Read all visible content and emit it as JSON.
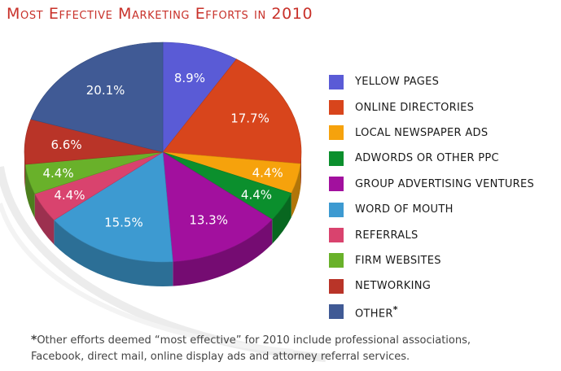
{
  "title": "Most Effective Marketing Efforts in 2010",
  "legend_note_marker": "*",
  "footnote": {
    "marker": "*",
    "line1": "Other efforts deemed “most effective” for 2010 include professional associations,",
    "line2": "Facebook, direct mail, online display ads and attorney referral services."
  },
  "chart_data": {
    "type": "pie",
    "title": "Most Effective Marketing Efforts in 2010",
    "legend_position": "right",
    "slices": [
      {
        "name": "YELLOW PAGES",
        "label": "8.9%",
        "value": 8.9,
        "color": "#5a5bd6"
      },
      {
        "name": "ONLINE DIRECTORIES",
        "label": "17.7%",
        "value": 17.7,
        "color": "#d8451c"
      },
      {
        "name": "LOCAL NEWSPAPER ADS",
        "label": "4.4%",
        "value": 4.4,
        "color": "#f6a20c"
      },
      {
        "name": "ADWORDS OR OTHER PPC",
        "label": "4.4%",
        "value": 4.4,
        "color": "#0b8f2d"
      },
      {
        "name": "GROUP ADVERTISING VENTURES",
        "label": "13.3%",
        "value": 13.3,
        "color": "#a2109e"
      },
      {
        "name": "WORD OF MOUTH",
        "label": "15.5%",
        "value": 15.5,
        "color": "#3d9ad1"
      },
      {
        "name": "REFERRALS",
        "label": "4.4%",
        "value": 4.4,
        "color": "#d9436e"
      },
      {
        "name": "FIRM WEBSITES",
        "label": "4.4%",
        "value": 4.4,
        "color": "#69b12a"
      },
      {
        "name": "NETWORKING",
        "label": "6.6%",
        "value": 6.6,
        "color": "#b93428"
      },
      {
        "name": "OTHER",
        "label": "20.1%",
        "value": 20.1,
        "color": "#405a95"
      }
    ]
  }
}
